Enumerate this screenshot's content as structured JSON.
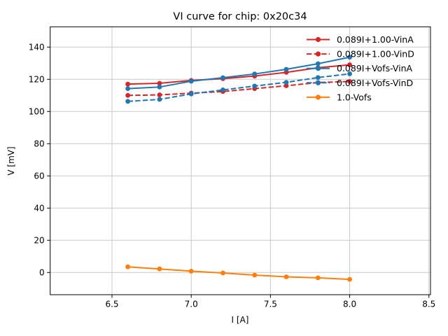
{
  "chart_data": {
    "type": "line",
    "title": "VI curve for chip: 0x20c34",
    "xlabel": "I [A]",
    "ylabel": "V [mV]",
    "xlim": [
      6.11,
      8.51
    ],
    "ylim": [
      -13.8,
      152.6
    ],
    "xticks": {
      "values": [
        6.5,
        7.0,
        7.5,
        8.0,
        8.5
      ],
      "labels": [
        "6.5",
        "7.0",
        "7.5",
        "8.0",
        "8.5"
      ]
    },
    "yticks": {
      "values": [
        0,
        20,
        40,
        60,
        80,
        100,
        120,
        140
      ],
      "labels": [
        "0",
        "20",
        "40",
        "60",
        "80",
        "100",
        "120",
        "140"
      ]
    },
    "grid": true,
    "legend_position": "upper right",
    "x": [
      6.6,
      6.8,
      7.0,
      7.2,
      7.4,
      7.6,
      7.8,
      8.0
    ],
    "series": [
      {
        "name": "0.089I+1.00-VinA",
        "color": "#d62728",
        "dash": "solid",
        "values": [
          117.0,
          117.5,
          119.3,
          120.4,
          122.0,
          124.3,
          127.2,
          129.0
        ]
      },
      {
        "name": "0.089I+1.00-VinD",
        "color": "#d62728",
        "dash": "dashed",
        "values": [
          110.0,
          110.3,
          111.4,
          112.4,
          114.2,
          116.0,
          118.0,
          118.6
        ]
      },
      {
        "name": "0.089I+Vofs-VinA",
        "color": "#1f77b4",
        "dash": "solid",
        "values": [
          114.2,
          115.2,
          118.8,
          121.0,
          123.3,
          126.2,
          129.7,
          133.7
        ]
      },
      {
        "name": "0.089I+Vofs-VinD",
        "color": "#1f77b4",
        "dash": "dashed",
        "values": [
          106.3,
          107.5,
          110.9,
          113.4,
          115.8,
          118.1,
          121.1,
          123.4
        ]
      },
      {
        "name": "1.0-Vofs",
        "color": "#ff7f0e",
        "dash": "solid",
        "values": [
          3.5,
          2.2,
          0.8,
          -0.3,
          -1.6,
          -2.7,
          -3.3,
          -4.3
        ]
      }
    ],
    "grid_color": "#c9c9c9",
    "spine_color": "#000000"
  }
}
